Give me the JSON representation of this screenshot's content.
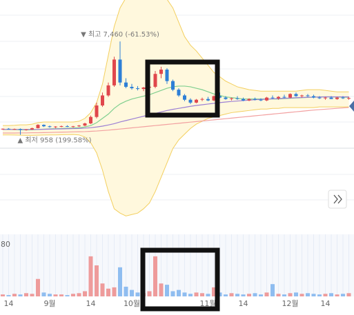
{
  "chart_data": [
    {
      "type": "candlestick",
      "categories": [
        null,
        "14",
        null,
        null,
        null,
        null,
        null,
        null,
        "9월",
        null,
        null,
        null,
        null,
        null,
        null,
        "14",
        null,
        null,
        null,
        null,
        null,
        null,
        "10월",
        null,
        null,
        null,
        null,
        null,
        null,
        null,
        null,
        null,
        null,
        null,
        null,
        "11월",
        null,
        null,
        null,
        null,
        null,
        "14",
        null,
        null,
        null,
        null,
        null,
        null,
        null,
        "12월",
        null,
        null,
        null,
        null,
        null,
        "14",
        null,
        null,
        null,
        null
      ],
      "open": [
        1350,
        1380,
        1340,
        1360,
        1300,
        1330,
        1420,
        1650,
        1550,
        1500,
        1530,
        1560,
        1520,
        1550,
        1600,
        1750,
        2200,
        3000,
        3700,
        4400,
        6200,
        4600,
        4300,
        4200,
        4150,
        4250,
        4300,
        5200,
        5500,
        4700,
        4100,
        3700,
        3400,
        3200,
        3400,
        3450,
        3350,
        3650,
        3550,
        3450,
        3500,
        3450,
        3350,
        3450,
        3400,
        3350,
        3550,
        3500,
        3600,
        3550,
        3800,
        3650,
        3700,
        3650,
        3550,
        3500,
        3550,
        3450,
        3550,
        3500
      ],
      "high": [
        1400,
        1420,
        1390,
        1400,
        1350,
        1450,
        1700,
        1680,
        1600,
        1560,
        1600,
        1620,
        1580,
        1640,
        1800,
        2300,
        3200,
        3900,
        4600,
        6400,
        7460,
        4900,
        4500,
        4350,
        4300,
        4500,
        5400,
        5700,
        5600,
        4800,
        4200,
        3800,
        3500,
        3450,
        3550,
        3600,
        3700,
        3900,
        3650,
        3550,
        3650,
        3550,
        3500,
        3550,
        3500,
        3600,
        3700,
        3650,
        3750,
        3850,
        3900,
        3750,
        3800,
        3750,
        3650,
        3600,
        3650,
        3600,
        3650,
        3600
      ],
      "low": [
        1300,
        1320,
        1300,
        958,
        1250,
        1300,
        1400,
        1500,
        1450,
        1420,
        1480,
        1500,
        1460,
        1500,
        1550,
        1700,
        2100,
        2900,
        3600,
        4300,
        4400,
        4200,
        4100,
        4050,
        4000,
        4150,
        4200,
        4900,
        4500,
        4000,
        3600,
        3300,
        3100,
        3150,
        3300,
        3300,
        3300,
        3500,
        3400,
        3350,
        3400,
        3300,
        3300,
        3350,
        3300,
        3300,
        3450,
        3400,
        3500,
        3500,
        3600,
        3550,
        3600,
        3500,
        3450,
        3400,
        3450,
        3400,
        3450,
        3400
      ],
      "close": [
        1380,
        1340,
        1360,
        1300,
        1330,
        1420,
        1650,
        1550,
        1500,
        1530,
        1560,
        1520,
        1550,
        1600,
        1750,
        2200,
        3000,
        3700,
        4400,
        6200,
        4600,
        4300,
        4200,
        4150,
        4250,
        4300,
        5200,
        5500,
        4700,
        4100,
        3700,
        3400,
        3200,
        3400,
        3450,
        3350,
        3650,
        3550,
        3450,
        3500,
        3450,
        3350,
        3450,
        3400,
        3350,
        3550,
        3500,
        3600,
        3550,
        3800,
        3650,
        3700,
        3650,
        3550,
        3500,
        3550,
        3450,
        3550,
        3500,
        3520
      ],
      "ylim": [
        -5500,
        10350
      ],
      "up_color": "#e0474c",
      "down_color": "#2d7fd6",
      "bands": {
        "color": "#f3cf5e",
        "fill": "#fff8dd",
        "upper": [
          1600,
          1600,
          1620,
          1650,
          1650,
          1700,
          1800,
          1850,
          1850,
          1850,
          1850,
          1850,
          1850,
          1900,
          2100,
          2500,
          3200,
          4500,
          6500,
          8500,
          9800,
          10500,
          10600,
          10600,
          10500,
          10400,
          10500,
          10500,
          10400,
          9800,
          8800,
          7800,
          7200,
          6800,
          6300,
          5800,
          5300,
          5000,
          4700,
          4500,
          4300,
          4200,
          4100,
          4050,
          4000,
          4000,
          4000,
          4000,
          4000,
          4000,
          4000,
          4050,
          4100,
          4100,
          4100,
          4050,
          4000,
          3950,
          3950,
          3950
        ],
        "lower": [
          950,
          950,
          940,
          930,
          920,
          920,
          930,
          940,
          950,
          950,
          960,
          970,
          980,
          950,
          800,
          400,
          -300,
          -1500,
          -3000,
          -4200,
          -4500,
          -4700,
          -4600,
          -4500,
          -4200,
          -3800,
          -3000,
          -2000,
          -1000,
          0,
          600,
          1000,
          1400,
          1700,
          1900,
          2100,
          2200,
          2300,
          2400,
          2500,
          2550,
          2600,
          2650,
          2700,
          2750,
          2750,
          2800,
          2800,
          2850,
          2850,
          2850,
          2850,
          2850,
          2850,
          2900,
          2900,
          2900,
          2900,
          2900,
          2900
        ]
      },
      "lines": [
        {
          "color": "#7fcf8f",
          "values": [
            1330,
            1330,
            1320,
            1310,
            1300,
            1310,
            1330,
            1350,
            1370,
            1390,
            1400,
            1420,
            1430,
            1450,
            1500,
            1600,
            1800,
            2100,
            2400,
            2800,
            3100,
            3300,
            3450,
            3550,
            3650,
            3750,
            3900,
            4050,
            4200,
            4300,
            4350,
            4350,
            4300,
            4200,
            4100,
            3950,
            3800,
            3700,
            3600,
            3550,
            3500,
            3450,
            3450,
            3450,
            3450,
            3450,
            3450,
            3450,
            3480,
            3500,
            3520,
            3540,
            3560,
            3580,
            3600,
            3600,
            3600,
            3590,
            3580,
            3570
          ]
        },
        {
          "color": "#9b7fd4",
          "values": [
            1330,
            1330,
            1330,
            1330,
            1330,
            1330,
            1330,
            1340,
            1350,
            1360,
            1370,
            1380,
            1390,
            1400,
            1420,
            1450,
            1500,
            1560,
            1640,
            1730,
            1850,
            1950,
            2050,
            2150,
            2250,
            2350,
            2450,
            2550,
            2650,
            2730,
            2800,
            2870,
            2940,
            3000,
            3050,
            3100,
            3150,
            3200,
            3240,
            3280,
            3310,
            3340,
            3370,
            3400,
            3420,
            3440,
            3460,
            3480,
            3500,
            3520,
            3540,
            3560,
            3570,
            3580,
            3590,
            3600,
            3600,
            3600,
            3600,
            3600
          ]
        },
        {
          "color": "#f2a0a0",
          "values": [
            1080,
            1080,
            1080,
            1090,
            1090,
            1100,
            1100,
            1110,
            1120,
            1130,
            1140,
            1150,
            1160,
            1170,
            1180,
            1200,
            1220,
            1250,
            1280,
            1320,
            1360,
            1400,
            1440,
            1480,
            1520,
            1560,
            1600,
            1640,
            1680,
            1720,
            1760,
            1800,
            1840,
            1880,
            1920,
            1960,
            2000,
            2040,
            2080,
            2120,
            2160,
            2200,
            2240,
            2280,
            2320,
            2360,
            2400,
            2440,
            2480,
            2520,
            2560,
            2600,
            2640,
            2680,
            2710,
            2740,
            2770,
            2800,
            2830,
            2860
          ]
        }
      ],
      "annotations": [
        "▼ 최고 7,460 (-61.53%)",
        "▲ 최저 958 (199.58%)"
      ]
    },
    {
      "type": "bar",
      "values": [
        3,
        2,
        4,
        3,
        5,
        4,
        27,
        6,
        4,
        3,
        3,
        2,
        4,
        5,
        8,
        62,
        48,
        20,
        12,
        14,
        45,
        15,
        10,
        6,
        5,
        8,
        62,
        20,
        18,
        8,
        10,
        6,
        4,
        6,
        5,
        4,
        14,
        6,
        3,
        5,
        4,
        3,
        4,
        5,
        3,
        6,
        19,
        4,
        3,
        5,
        6,
        4,
        5,
        4,
        3,
        4,
        5,
        3,
        4,
        5
      ],
      "ylim": [
        0,
        96
      ],
      "yticks": [
        80
      ],
      "up_color": "#ee9b9b",
      "down_color": "#8fbdf0"
    }
  ]
}
